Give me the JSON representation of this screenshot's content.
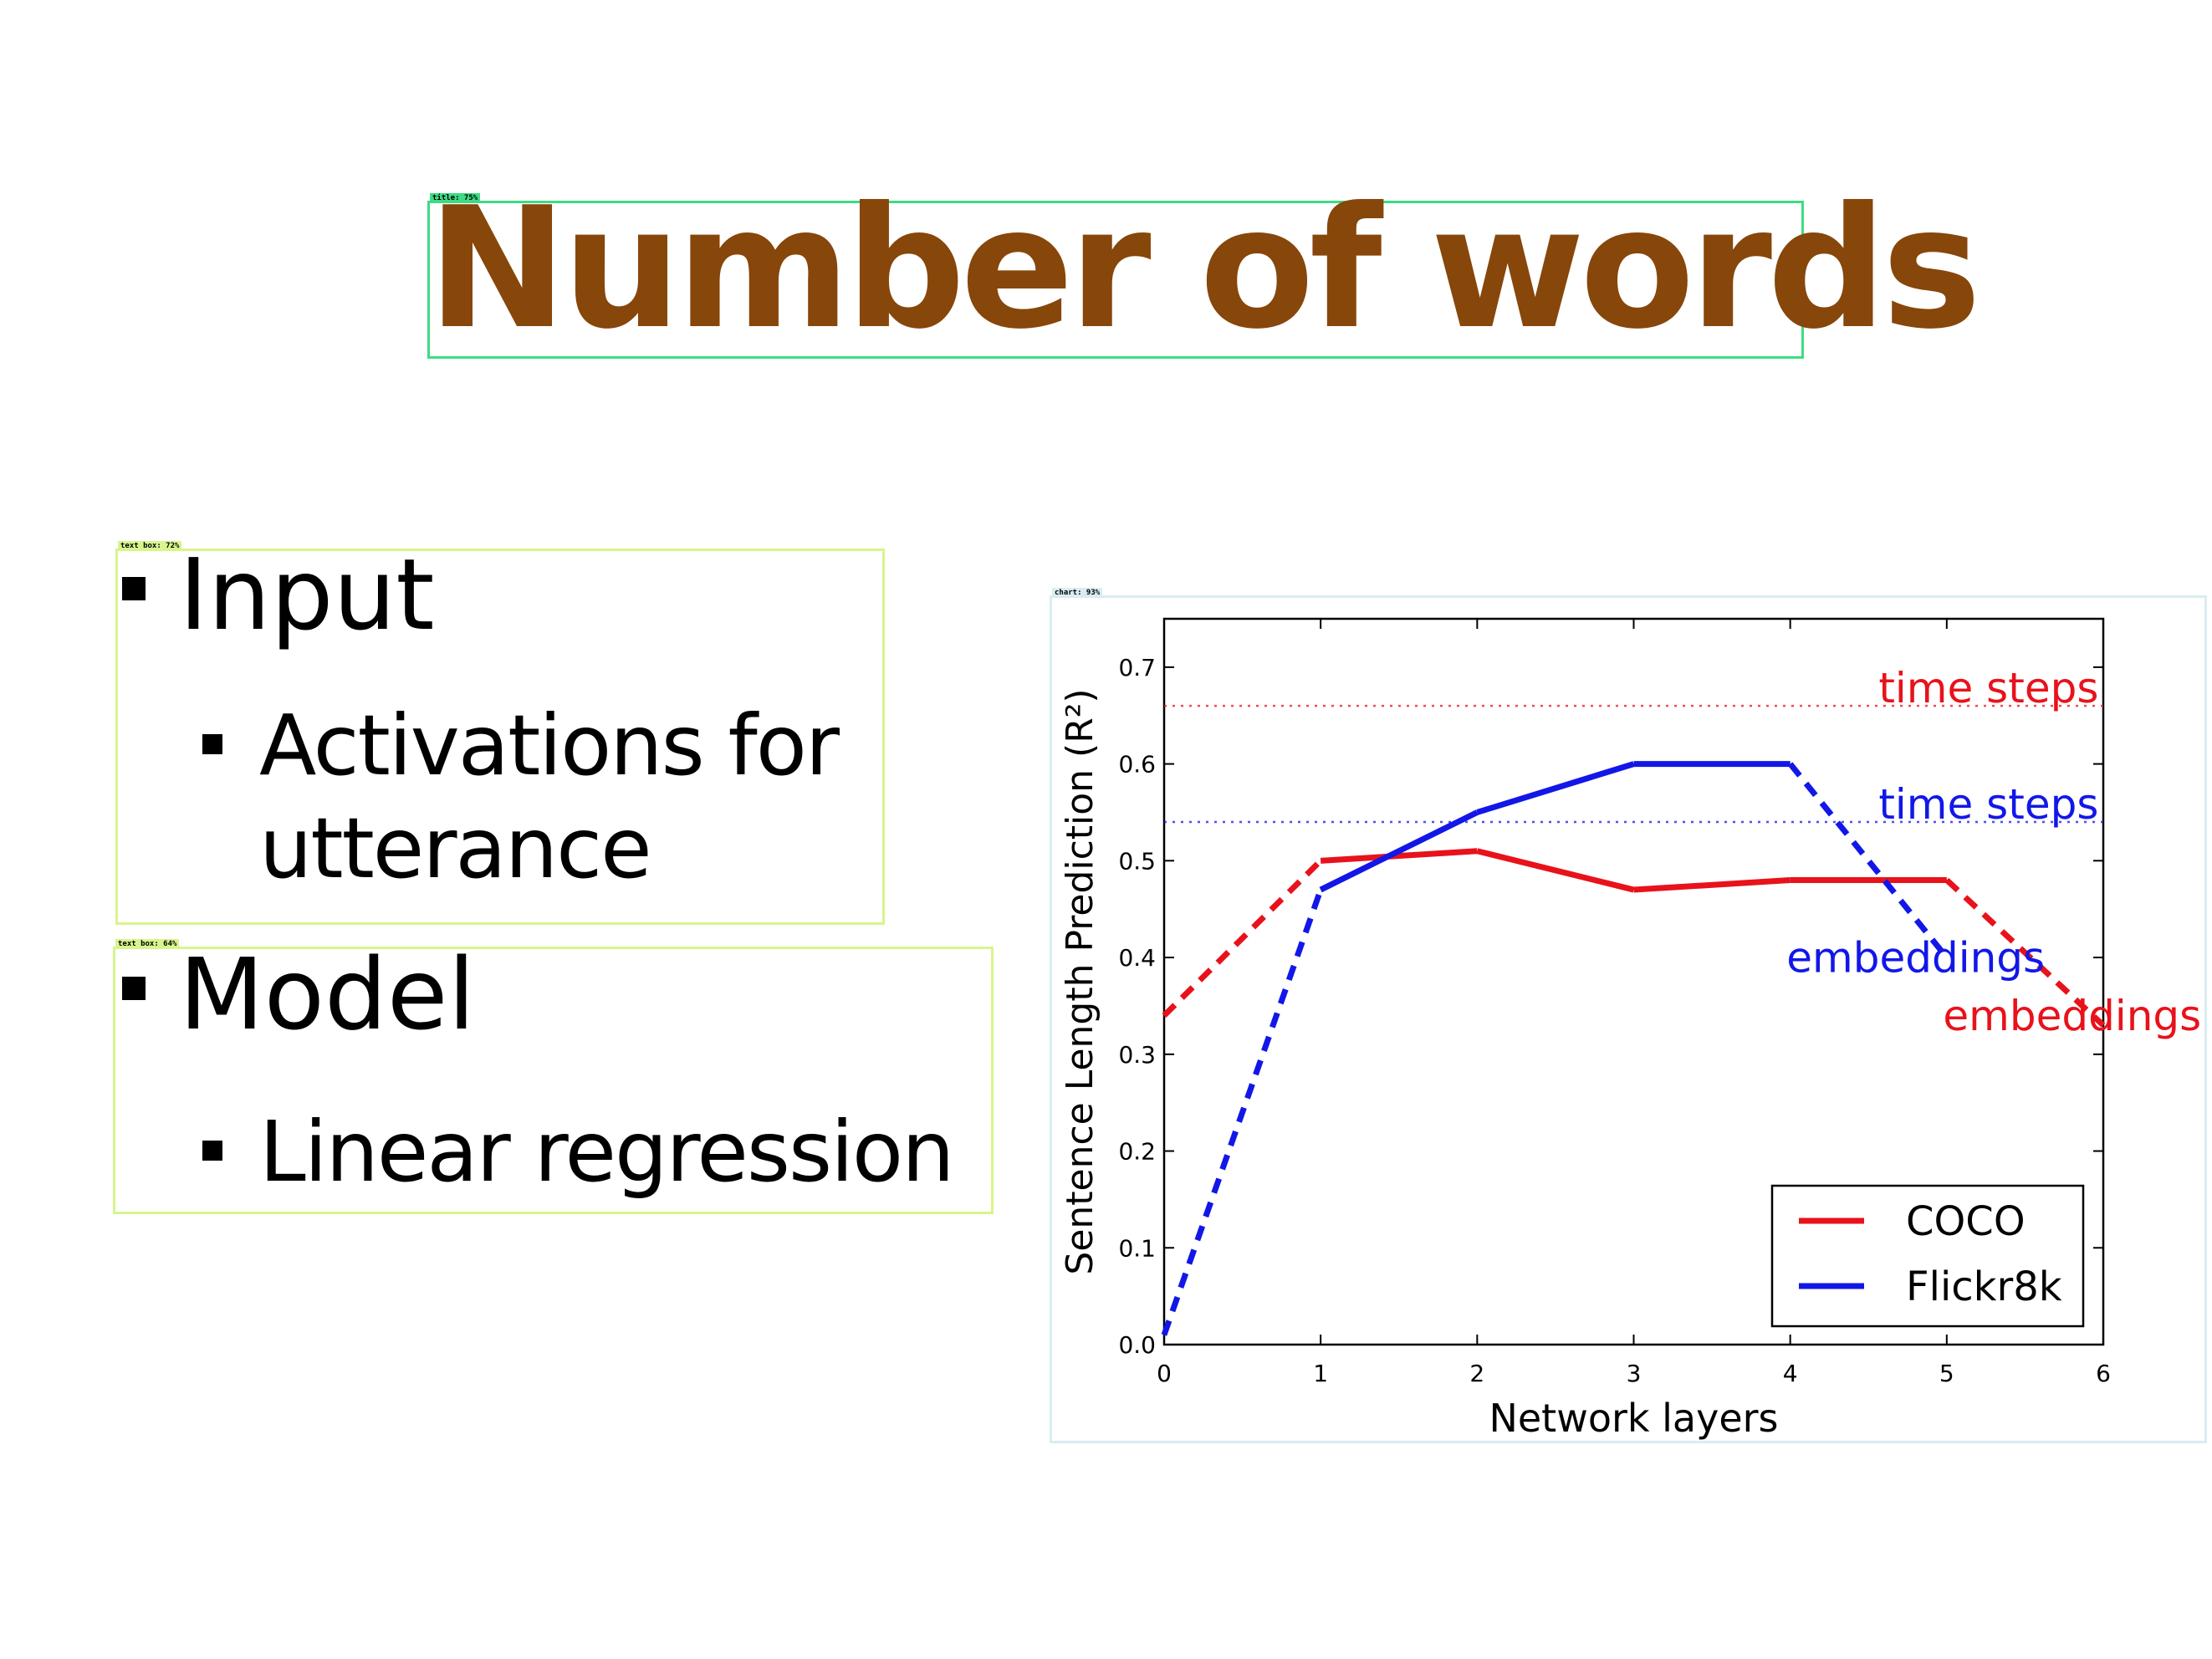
{
  "slide": {
    "title": "Number of words",
    "title_color": "#87460A"
  },
  "detections": {
    "title_label": "title: 75%",
    "textbox1_label": "text box: 72%",
    "textbox2_label": "text box: 64%",
    "chart_label": "chart: 93%",
    "title_color": "#3DDC84",
    "textbox_color": "#D7F58C",
    "chart_color": "#D9ECF2"
  },
  "bullets": {
    "input": "Input",
    "input_sub_line1": "Activations for",
    "input_sub_line2": "utterance",
    "model": "Model",
    "model_sub": "Linear regression"
  },
  "chart_data": {
    "type": "line",
    "xlabel": "Network layers",
    "ylabel": "Sentence Length Prediction (R²)",
    "xlim": [
      0,
      6
    ],
    "ylim": [
      0,
      0.75
    ],
    "x_ticks": [
      "0",
      "1",
      "2",
      "3",
      "4",
      "5",
      "6"
    ],
    "y_ticks": [
      "0.0",
      "0.1",
      "0.2",
      "0.3",
      "0.4",
      "0.5",
      "0.6",
      "0.7"
    ],
    "series": [
      {
        "name": "COCO",
        "color": "#E8121B",
        "x": [
          0,
          1,
          2,
          3,
          4,
          5,
          6
        ],
        "y": [
          0.34,
          0.5,
          0.51,
          0.47,
          0.48,
          0.48,
          0.33
        ],
        "dashed_segments": [
          [
            0,
            1
          ],
          [
            5,
            6
          ]
        ]
      },
      {
        "name": "Flickr8k",
        "color": "#1217E8",
        "x": [
          0,
          1,
          2,
          3,
          4,
          5
        ],
        "y": [
          0.01,
          0.47,
          0.55,
          0.6,
          0.6,
          0.4
        ],
        "dashed_segments": [
          [
            0,
            1
          ],
          [
            4,
            5
          ]
        ]
      }
    ],
    "reference_lines": [
      {
        "series": "COCO",
        "y": 0.66,
        "color": "#E8121B",
        "label": "time steps"
      },
      {
        "series": "Flickr8k",
        "y": 0.54,
        "color": "#1217E8",
        "label": "time steps"
      }
    ],
    "annotations": [
      {
        "text": "time steps",
        "x": 5.97,
        "y": 0.66,
        "color": "#E8121B"
      },
      {
        "text": "time steps",
        "x": 5.97,
        "y": 0.54,
        "color": "#1217E8"
      },
      {
        "text": "embeddings",
        "x": 4.0,
        "y": 0.385,
        "color": "#1217E8"
      },
      {
        "text": "embeddings",
        "x": 5.0,
        "y": 0.325,
        "color": "#E8121B"
      }
    ],
    "legend": {
      "position": "bottom-right",
      "entries": [
        "COCO",
        "Flickr8k"
      ]
    },
    "grid": false
  }
}
